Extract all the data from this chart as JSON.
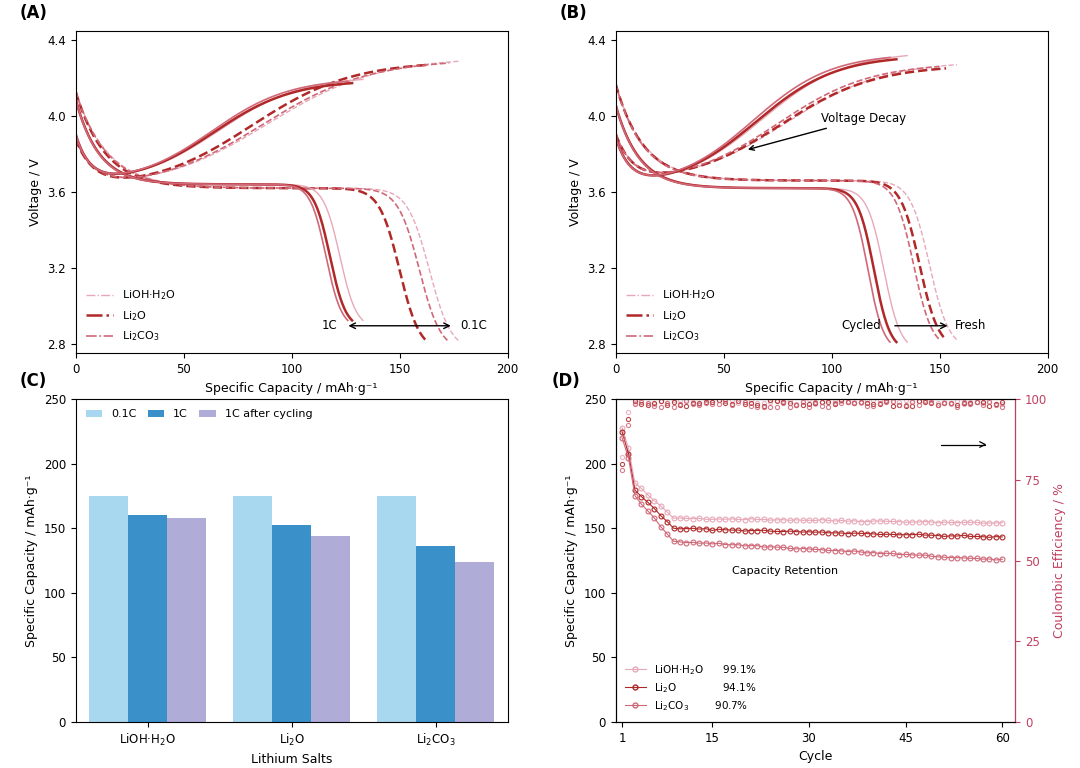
{
  "fig_bg": "#ffffff",
  "colors": {
    "lioh": "#e8a8b8",
    "li2o": "#b02828",
    "li2co3": "#d06878"
  },
  "panelA": {
    "xlim": [
      0,
      200
    ],
    "ylim": [
      2.75,
      4.45
    ],
    "xlabel": "Specific Capacity / mAh·g⁻¹",
    "ylabel": "Voltage / V",
    "yticks": [
      2.8,
      3.2,
      3.6,
      4.0,
      4.4
    ],
    "xticks": [
      0,
      50,
      100,
      150,
      200
    ]
  },
  "panelB": {
    "xlim": [
      0,
      200
    ],
    "ylim": [
      2.75,
      4.45
    ],
    "xlabel": "Specific Capacity / mAh·g⁻¹",
    "ylabel": "Voltage / V",
    "yticks": [
      2.8,
      3.2,
      3.6,
      4.0,
      4.4
    ],
    "xticks": [
      0,
      50,
      100,
      150,
      200
    ]
  },
  "panelC": {
    "data_01c": [
      175,
      175,
      175
    ],
    "data_1c": [
      160,
      153,
      136
    ],
    "data_1c_cycling": [
      158,
      144,
      124
    ],
    "ylim": [
      0,
      250
    ],
    "yticks": [
      0,
      50,
      100,
      150,
      200,
      250
    ],
    "xlabel": "Lithium Salts",
    "ylabel": "Specific Capacity / mAh·g⁻¹",
    "color_01c": "#a8d8f0",
    "color_1c": "#3a90c8",
    "color_cycling": "#b0acd8"
  },
  "panelD": {
    "xlim": [
      0,
      62
    ],
    "ylim_left": [
      0,
      250
    ],
    "ylim_right": [
      0,
      100
    ],
    "xlabel": "Cycle",
    "ylabel_left": "Specific Capacity / mAh·g⁻¹",
    "ylabel_right": "Coulombic Efficiency / %",
    "xticks": [
      1,
      15,
      30,
      45,
      60
    ],
    "yticks_left": [
      0,
      50,
      100,
      150,
      200,
      250
    ],
    "yticks_right": [
      0,
      25,
      50,
      75,
      100
    ],
    "retention_lioh": "99.1%",
    "retention_li2o": "94.1%",
    "retention_li2co3": "90.7%"
  }
}
